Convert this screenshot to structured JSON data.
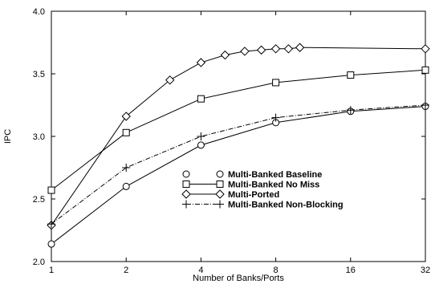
{
  "chart_data": {
    "type": "line",
    "title": "",
    "xlabel": "Number of Banks/Ports",
    "ylabel": "IPC",
    "x_scale": "log2",
    "x_ticks": [
      1,
      2,
      4,
      8,
      16,
      32
    ],
    "x_tick_labels": [
      "1",
      "2",
      "4",
      "8",
      "16",
      "32"
    ],
    "y_ticks": [
      2.0,
      2.5,
      3.0,
      3.5,
      4.0
    ],
    "y_tick_labels": [
      "2.0",
      "2.5",
      "3.0",
      "3.5",
      "4.0"
    ],
    "xlim": [
      1,
      32
    ],
    "ylim": [
      2.0,
      4.0
    ],
    "grid": false,
    "legend_position": "center",
    "series": [
      {
        "name": "Multi-Banked Baseline",
        "marker": "circle",
        "line": "solid",
        "x": [
          1,
          2,
          4,
          8,
          16,
          32
        ],
        "y": [
          2.14,
          2.6,
          2.93,
          3.11,
          3.2,
          3.24
        ]
      },
      {
        "name": "Multi-Banked No Miss",
        "marker": "square",
        "line": "solid",
        "x": [
          1,
          2,
          4,
          8,
          16,
          32
        ],
        "y": [
          2.57,
          3.03,
          3.3,
          3.43,
          3.49,
          3.53
        ]
      },
      {
        "name": "Multi-Ported",
        "marker": "diamond",
        "line": "solid",
        "x": [
          1,
          2,
          3,
          4,
          5,
          6,
          7,
          8,
          9,
          10,
          32
        ],
        "y": [
          2.29,
          3.16,
          3.45,
          3.59,
          3.65,
          3.68,
          3.69,
          3.7,
          3.7,
          3.71,
          3.7
        ]
      },
      {
        "name": "Multi-Banked Non-Blocking",
        "marker": "plus",
        "line": "dashdot",
        "x": [
          1,
          2,
          4,
          8,
          16,
          32
        ],
        "y": [
          2.3,
          2.75,
          3.0,
          3.15,
          3.21,
          3.25
        ]
      }
    ]
  }
}
